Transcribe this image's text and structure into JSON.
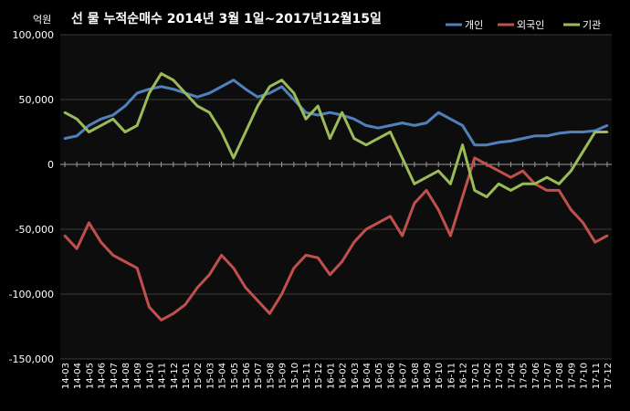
{
  "chart_data": {
    "type": "line",
    "title": "선 물 누적순매수 2014년 3월 1일~2017년12월15일",
    "unit": "억원",
    "ylim": [
      -150000,
      100000
    ],
    "yticks": [
      100000,
      50000,
      0,
      -50000,
      -100000,
      -150000
    ],
    "ytick_labels": [
      "100,000",
      "50,000",
      "0",
      "-50,000",
      "-100,000",
      "-150,000"
    ],
    "grid": true,
    "legend_position": "top-right",
    "categories": [
      "14-03",
      "14-04",
      "14-05",
      "14-06",
      "14-07",
      "14-08",
      "14-09",
      "14-10",
      "14-11",
      "14-12",
      "15-01",
      "15-02",
      "15-03",
      "15-04",
      "15-05",
      "15-06",
      "15-07",
      "15-08",
      "15-09",
      "15-10",
      "15-11",
      "15-12",
      "16-01",
      "16-02",
      "16-03",
      "16-04",
      "16-05",
      "16-06",
      "16-07",
      "16-08",
      "16-09",
      "16-10",
      "16-11",
      "16-12",
      "17-01",
      "17-02",
      "17-03",
      "17-04",
      "17-05",
      "17-06",
      "17-07",
      "17-08",
      "17-09",
      "17-10",
      "17-11",
      "17-12"
    ],
    "series": [
      {
        "name": "개인",
        "color": "#4f81bd",
        "values": [
          20000,
          22000,
          30000,
          35000,
          38000,
          45000,
          55000,
          58000,
          60000,
          58000,
          55000,
          52000,
          55000,
          60000,
          65000,
          58000,
          52000,
          55000,
          60000,
          50000,
          40000,
          38000,
          40000,
          38000,
          35000,
          30000,
          28000,
          30000,
          32000,
          30000,
          32000,
          40000,
          35000,
          30000,
          15000,
          15000,
          17000,
          18000,
          20000,
          22000,
          22000,
          24000,
          25000,
          25000,
          26000,
          30000
        ]
      },
      {
        "name": "외국인",
        "color": "#c0504d",
        "values": [
          -55000,
          -65000,
          -45000,
          -60000,
          -70000,
          -75000,
          -80000,
          -110000,
          -120000,
          -115000,
          -108000,
          -95000,
          -85000,
          -70000,
          -80000,
          -95000,
          -105000,
          -115000,
          -100000,
          -80000,
          -70000,
          -72000,
          -85000,
          -75000,
          -60000,
          -50000,
          -45000,
          -40000,
          -55000,
          -30000,
          -20000,
          -35000,
          -55000,
          -25000,
          5000,
          0,
          -5000,
          -10000,
          -5000,
          -15000,
          -20000,
          -20000,
          -35000,
          -45000,
          -60000,
          -55000
        ]
      },
      {
        "name": "기관",
        "color": "#9bbb59",
        "values": [
          40000,
          35000,
          25000,
          30000,
          35000,
          25000,
          30000,
          55000,
          70000,
          65000,
          55000,
          45000,
          40000,
          25000,
          5000,
          25000,
          45000,
          60000,
          65000,
          55000,
          35000,
          45000,
          20000,
          40000,
          20000,
          15000,
          20000,
          25000,
          5000,
          -15000,
          -10000,
          -5000,
          -15000,
          15000,
          -20000,
          -25000,
          -15000,
          -20000,
          -15000,
          -15000,
          -10000,
          -15000,
          -5000,
          10000,
          25000,
          25000
        ]
      }
    ]
  }
}
